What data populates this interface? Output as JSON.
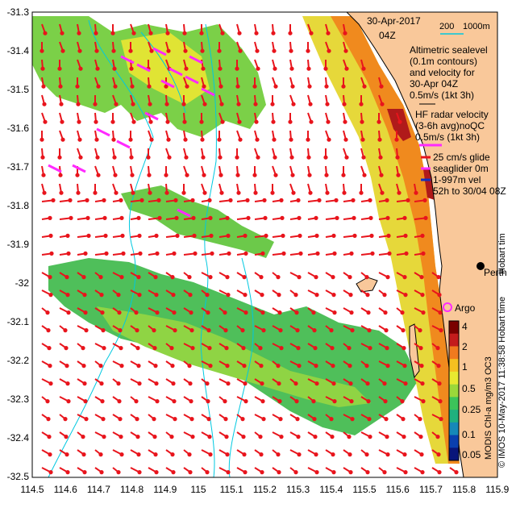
{
  "map": {
    "date": "30-Apr-2017",
    "time": "04Z",
    "depth_legend": {
      "d200": "200",
      "d1000": "1000m"
    },
    "legend_lines": [
      "Altimetric sealevel",
      "(0.1m contours)",
      "and velocity for",
      "30-Apr 04Z",
      "0.5m/s (1kt 3h)",
      "HF radar velocity",
      "(3-6h avg)noQC",
      "0.5m/s (1kt 3h)",
      "25 cm/s glide",
      "seaglider 0m",
      "1-997m vel",
      "52h to 30/04 08Z"
    ],
    "places": {
      "perth": "Perth",
      "argo": "Argo",
      "hobart": "Hobart tim"
    },
    "colorbar": {
      "ticks": [
        "4",
        "2",
        "1",
        "0.5",
        "0.25",
        "0.1",
        "0.05"
      ],
      "title": "MODIS Chl-a mg/m3 OC3",
      "colors": [
        "#7a0000",
        "#c31c1c",
        "#f07a1e",
        "#f5c020",
        "#e8e830",
        "#9bd83a",
        "#3cc45a",
        "#1fb07e",
        "#1688b8",
        "#0a3fae",
        "#08157a"
      ]
    },
    "credit": "© IMOS 10-May-2017 11:38:58 Hobart time",
    "axis": {
      "y_labels": [
        "-31.3",
        "-31.4",
        "-31.5",
        "-31.6",
        "-31.7",
        "-31.8",
        "-31.9",
        "-32",
        "-32.1",
        "-32.2",
        "-32.3",
        "-32.4",
        "-32.5"
      ],
      "x_labels": [
        "114.5",
        "114.6",
        "114.7",
        "114.8",
        "114.9",
        "115",
        "115.1",
        "115.2",
        "115.3",
        "115.4",
        "115.5",
        "115.6",
        "115.7",
        "115.8",
        "115.9"
      ]
    },
    "colors": {
      "land": "#f9c89a",
      "contour": "#00c8e0",
      "arrow": "#e8141c",
      "hf": "#ff2aff",
      "glider": "#1030c0"
    }
  }
}
